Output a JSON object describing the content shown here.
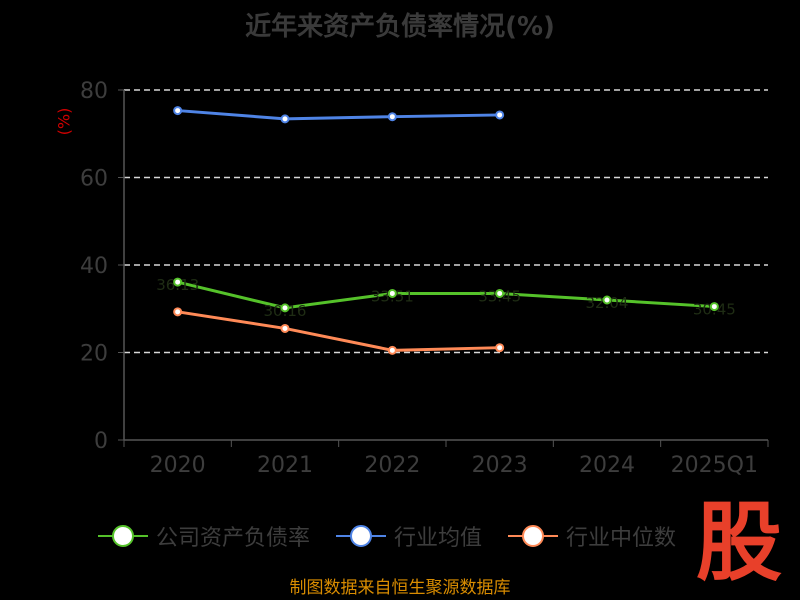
{
  "chart_data": {
    "type": "line",
    "title": "近年来资产负债率情况(%)",
    "ylabel": "(%)",
    "categories": [
      "2020",
      "2021",
      "2022",
      "2023",
      "2024",
      "2025Q1"
    ],
    "ylim": [
      0,
      80
    ],
    "yticks": [
      0,
      20,
      40,
      60,
      80
    ],
    "grid": true,
    "legend_position": "bottom",
    "series": [
      {
        "name": "公司资产负债率",
        "color": "#55c22a",
        "values": [
          36.1,
          30.2,
          33.5,
          33.5,
          32.0,
          30.5
        ],
        "labels": [
          "36.13",
          "30.16",
          "33.51",
          "33.45",
          "32.04",
          "30.45"
        ]
      },
      {
        "name": "行业均值",
        "color": "#4f84e6",
        "values": [
          75.3,
          73.4,
          73.9,
          74.3,
          null,
          null
        ]
      },
      {
        "name": "行业中位数",
        "color": "#ff8a57",
        "values": [
          29.3,
          25.5,
          20.5,
          21.1,
          null,
          null
        ]
      }
    ]
  },
  "source": "制图数据来自恒生聚源数据库",
  "logo": "股"
}
